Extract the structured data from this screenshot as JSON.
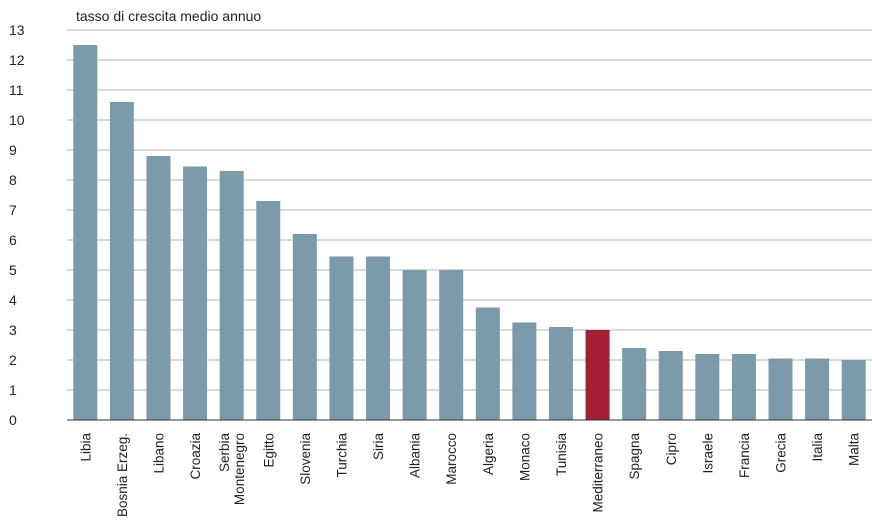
{
  "chart_data": {
    "type": "bar",
    "ylabel": "tasso di crescita medio annuo",
    "ylim": [
      0,
      13
    ],
    "yticks": [
      "0",
      "1",
      "2",
      "3",
      "4",
      "5",
      "6",
      "7",
      "8",
      "9",
      "10",
      "11",
      "12",
      "13"
    ],
    "grid": true,
    "categories": [
      [
        "Libia"
      ],
      [
        "Bosnia Erzeg."
      ],
      [
        "Libano"
      ],
      [
        "Croazia"
      ],
      [
        "Serbia",
        "Montenegro"
      ],
      [
        "Egitto"
      ],
      [
        "Slovenia"
      ],
      [
        "Turchia"
      ],
      [
        "Siria"
      ],
      [
        "Albania"
      ],
      [
        "Marocco"
      ],
      [
        "Algeria"
      ],
      [
        "Monaco"
      ],
      [
        "Tunisia"
      ],
      [
        "Mediterraneo"
      ],
      [
        "Spagna"
      ],
      [
        "Cipro"
      ],
      [
        "Israele"
      ],
      [
        "Francia"
      ],
      [
        "Grecia"
      ],
      [
        "Italia"
      ],
      [
        "Malta"
      ]
    ],
    "values": [
      12.5,
      10.6,
      8.8,
      8.45,
      8.3,
      7.3,
      6.2,
      5.45,
      5.45,
      5.0,
      5.0,
      3.75,
      3.25,
      3.1,
      3.0,
      2.4,
      2.3,
      2.2,
      2.2,
      2.05,
      2.05,
      2.0
    ],
    "colors": {
      "bar": "#7b9aaa",
      "highlight": "#a21f35",
      "grid": "#9a9a9a",
      "axis": "#333333"
    },
    "highlight_category": "Mediterraneo"
  }
}
